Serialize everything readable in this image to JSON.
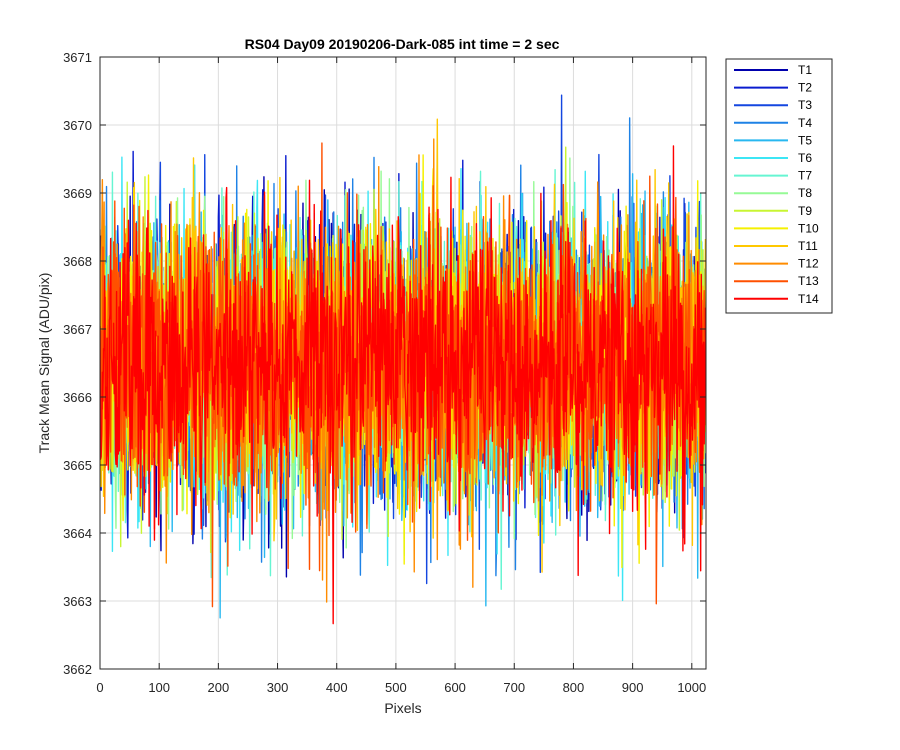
{
  "chart_data": {
    "type": "line",
    "title": "RS04 Day09 20190206-Dark-085 int time = 2 sec",
    "xlabel": "Pixels",
    "ylabel": "Track Mean Signal (ADU/pix)",
    "xlim": [
      0,
      1024
    ],
    "ylim": [
      3662,
      3671
    ],
    "x_ticks": [
      0,
      100,
      200,
      300,
      400,
      500,
      600,
      700,
      800,
      900,
      1000
    ],
    "y_ticks": [
      3662,
      3663,
      3664,
      3665,
      3666,
      3667,
      3668,
      3669,
      3670,
      3671
    ],
    "grid": true,
    "legend_position": "outside-top-right",
    "n_points": 1024,
    "noise": {
      "mean": 3666.5,
      "std": 1.0,
      "min_observed": 3662.3,
      "max_observed": 3670.7
    },
    "series": [
      {
        "name": "T1",
        "color": "#0000ad"
      },
      {
        "name": "T2",
        "color": "#0a1ccf"
      },
      {
        "name": "T3",
        "color": "#1447e0"
      },
      {
        "name": "T4",
        "color": "#1e82e6"
      },
      {
        "name": "T5",
        "color": "#28b8f0"
      },
      {
        "name": "T6",
        "color": "#3ce6f5"
      },
      {
        "name": "T7",
        "color": "#66f5d2"
      },
      {
        "name": "T8",
        "color": "#96fa96"
      },
      {
        "name": "T9",
        "color": "#c8f532"
      },
      {
        "name": "T10",
        "color": "#f5f000"
      },
      {
        "name": "T11",
        "color": "#ffc800"
      },
      {
        "name": "T12",
        "color": "#ff8c00"
      },
      {
        "name": "T13",
        "color": "#ff5000"
      },
      {
        "name": "T14",
        "color": "#ff0000"
      }
    ]
  }
}
